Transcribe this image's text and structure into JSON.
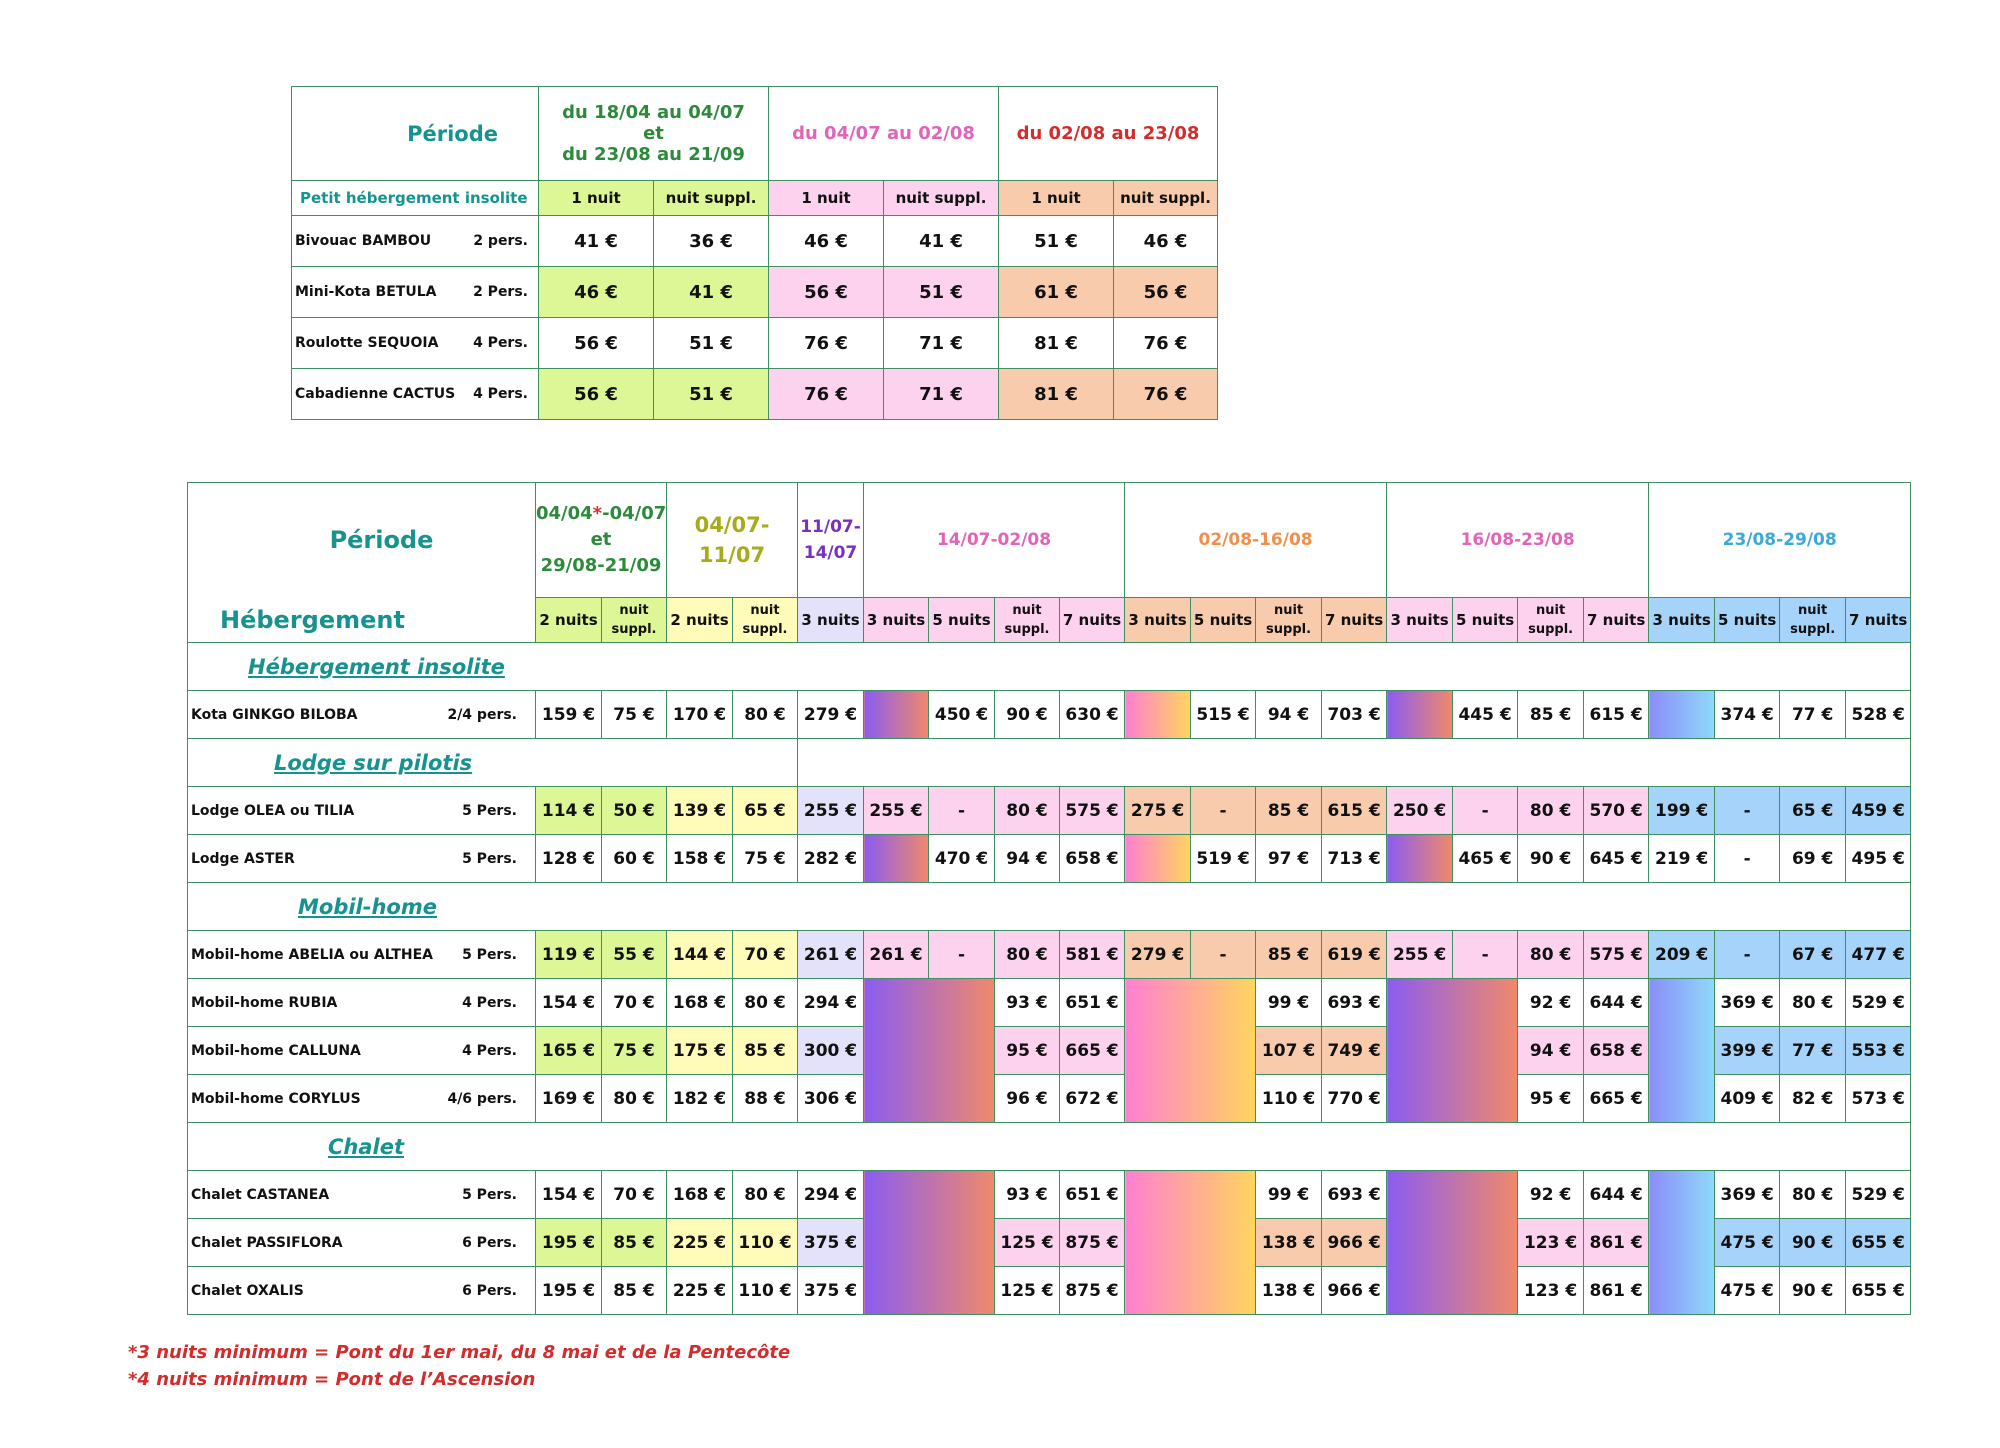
{
  "table1": {
    "periode_label": "Période",
    "category_label": "Petit hébergement insolite",
    "periods": {
      "p1": {
        "line1": "du 18/04 au 04/07",
        "line2": "et",
        "line3": "du 23/08 au 21/09"
      },
      "p2": "du 04/07 au 02/08",
      "p3": "du 02/08 au 23/08"
    },
    "sub": {
      "one": "1 nuit",
      "extra": "nuit suppl."
    },
    "rows": [
      {
        "name": "Bivouac BAMBOU",
        "cap": "2 pers.",
        "v": [
          "41 €",
          "36 €",
          "46 €",
          "41 €",
          "51 €",
          "46 €"
        ]
      },
      {
        "name": "Mini-Kota BETULA",
        "cap": "2 Pers.",
        "v": [
          "46 €",
          "41 €",
          "56 €",
          "51 €",
          "61 €",
          "56 €"
        ]
      },
      {
        "name": "Roulotte SEQUOIA",
        "cap": "4 Pers.",
        "v": [
          "56 €",
          "51 €",
          "76 €",
          "71 €",
          "81 €",
          "76 €"
        ]
      },
      {
        "name": "Cabadienne CACTUS",
        "cap": "4 Pers.",
        "v": [
          "56 €",
          "51 €",
          "76 €",
          "71 €",
          "81 €",
          "76 €"
        ]
      }
    ]
  },
  "table2": {
    "periode_label": "Période",
    "hebergement_label": "Hébergement",
    "periods": {
      "p1": {
        "a": "04/04",
        "star": "*",
        "b": "-04/07",
        "c": "et",
        "d": "29/08-21/09"
      },
      "p2": {
        "a": "04/07-",
        "b": "11/07"
      },
      "p3": {
        "a": "11/07-",
        "b": "14/07"
      },
      "p4": "14/07-02/08",
      "p5": "02/08-16/08",
      "p6": "16/08-23/08",
      "p7": "23/08-29/08"
    },
    "sub": {
      "n2": "2 nuits",
      "n3": "3 nuits",
      "n5": "5 nuits",
      "n7": "7 nuits",
      "extra1": "nuit",
      "extra2": "suppl."
    },
    "sections": {
      "insolite": "Hébergement insolite",
      "lodge": "Lodge sur pilotis",
      "mobil": "Mobil-home",
      "chalet": "Chalet"
    },
    "rows": {
      "ginkgo": {
        "name": "Kota GINKGO BILOBA",
        "cap": "2/4 pers.",
        "v": [
          "159 €",
          "75 €",
          "170 €",
          "80 €",
          "279 €",
          "450 €",
          "90 €",
          "630 €",
          "515 €",
          "94 €",
          "703 €",
          "445 €",
          "85 €",
          "615 €",
          "374 €",
          "77 €",
          "528 €"
        ]
      },
      "olea": {
        "name": "Lodge OLEA ou TILIA",
        "cap": "5 Pers.",
        "v": [
          "114 €",
          "50 €",
          "139 €",
          "65 €",
          "255 €",
          "255 €",
          "-",
          "80 €",
          "575 €",
          "275 €",
          "-",
          "85 €",
          "615 €",
          "250 €",
          "-",
          "80 €",
          "570 €",
          "199 €",
          "-",
          "65 €",
          "459 €"
        ]
      },
      "aster": {
        "name": "Lodge ASTER",
        "cap": "5 Pers.",
        "v": [
          "128 €",
          "60 €",
          "158 €",
          "75 €",
          "282 €",
          "470 €",
          "94 €",
          "658 €",
          "519 €",
          "97 €",
          "713 €",
          "465 €",
          "90 €",
          "645 €",
          "219 €",
          "-",
          "69 €",
          "495 €"
        ]
      },
      "abelia": {
        "name": "Mobil-home ABELIA ou ALTHEA",
        "cap": "5 Pers.",
        "v": [
          "119 €",
          "55 €",
          "144 €",
          "70 €",
          "261 €",
          "261 €",
          "-",
          "80 €",
          "581 €",
          "279 €",
          "-",
          "85 €",
          "619 €",
          "255 €",
          "-",
          "80 €",
          "575 €",
          "209 €",
          "-",
          "67 €",
          "477 €"
        ]
      },
      "rubia": {
        "name": "Mobil-home RUBIA",
        "cap": "4 Pers.",
        "v": [
          "154 €",
          "70 €",
          "168 €",
          "80 €",
          "294 €",
          "93 €",
          "651 €",
          "99 €",
          "693 €",
          "92 €",
          "644 €",
          "369 €",
          "80 €",
          "529 €"
        ]
      },
      "calluna": {
        "name": "Mobil-home CALLUNA",
        "cap": "4 Pers.",
        "v": [
          "165 €",
          "75 €",
          "175 €",
          "85 €",
          "300 €",
          "95 €",
          "665 €",
          "107 €",
          "749 €",
          "94 €",
          "658 €",
          "399 €",
          "77 €",
          "553 €"
        ]
      },
      "corylus": {
        "name": "Mobil-home CORYLUS",
        "cap": "4/6 pers.",
        "v": [
          "169 €",
          "80 €",
          "182 €",
          "88 €",
          "306 €",
          "96 €",
          "672 €",
          "110 €",
          "770 €",
          "95 €",
          "665 €",
          "409 €",
          "82 €",
          "573 €"
        ]
      },
      "castanea": {
        "name": "Chalet CASTANEA",
        "cap": "5 Pers.",
        "v": [
          "154 €",
          "70 €",
          "168 €",
          "80 €",
          "294 €",
          "93 €",
          "651 €",
          "99 €",
          "693 €",
          "92 €",
          "644 €",
          "369 €",
          "80 €",
          "529 €"
        ]
      },
      "passiflora": {
        "name": "Chalet PASSIFLORA",
        "cap": "6 Pers.",
        "v": [
          "195 €",
          "85 €",
          "225 €",
          "110 €",
          "375 €",
          "125 €",
          "875 €",
          "138 €",
          "966 €",
          "123 €",
          "861 €",
          "475 €",
          "90 €",
          "655 €"
        ]
      },
      "oxalis": {
        "name": "Chalet OXALIS",
        "cap": "6 Pers.",
        "v": [
          "195 €",
          "85 €",
          "225 €",
          "110 €",
          "375 €",
          "125 €",
          "875 €",
          "138 €",
          "966 €",
          "123 €",
          "861 €",
          "475 €",
          "90 €",
          "655 €"
        ]
      }
    }
  },
  "notes": {
    "n1": "*3 nuits minimum = Pont du 1er mai, du 8 mai et de la Pentecôte",
    "n2": "*4 nuits minimum = Pont de l’Ascension"
  }
}
